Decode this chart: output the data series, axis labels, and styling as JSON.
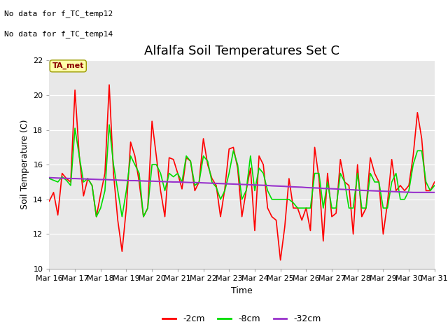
{
  "title": "Alfalfa Soil Temperatures Set C",
  "xlabel": "Time",
  "ylabel": "Soil Temperature (C)",
  "ylim": [
    10,
    22
  ],
  "yticks": [
    10,
    12,
    14,
    16,
    18,
    20,
    22
  ],
  "xtick_labels": [
    "Mar 16",
    "Mar 17",
    "Mar 18",
    "Mar 19",
    "Mar 20",
    "Mar 21",
    "Mar 22",
    "Mar 23",
    "Mar 24",
    "Mar 25",
    "Mar 26",
    "Mar 27",
    "Mar 28",
    "Mar 29",
    "Mar 30",
    "Mar 31"
  ],
  "no_data_text1": "No data for f_TC_temp12",
  "no_data_text2": "No data for f_TC_temp14",
  "ta_met_label": "TA_met",
  "legend_entries": [
    "-2cm",
    "-8cm",
    "-32cm"
  ],
  "legend_colors": [
    "#ff0000",
    "#00dd00",
    "#9933cc"
  ],
  "bg_color": "#e8e8e8",
  "title_fontsize": 13,
  "series_2cm": [
    13.9,
    14.4,
    13.1,
    15.5,
    15.2,
    15.0,
    20.3,
    16.5,
    14.2,
    15.2,
    14.8,
    13.0,
    14.3,
    15.5,
    20.6,
    15.5,
    12.8,
    11.0,
    13.5,
    17.3,
    16.5,
    15.0,
    13.0,
    13.5,
    18.5,
    16.5,
    14.5,
    13.0,
    16.4,
    16.3,
    15.5,
    14.6,
    16.4,
    16.2,
    14.5,
    15.0,
    17.5,
    16.0,
    15.2,
    14.8,
    13.0,
    14.6,
    16.9,
    17.0,
    15.8,
    13.0,
    14.5,
    15.8,
    12.2,
    16.5,
    16.0,
    13.5,
    13.0,
    12.8,
    10.5,
    12.4,
    15.2,
    13.5,
    13.5,
    12.8,
    13.5,
    12.2,
    17.0,
    15.2,
    11.6,
    15.5,
    13.0,
    13.2,
    16.3,
    15.0,
    14.8,
    12.0,
    16.0,
    13.0,
    13.5,
    16.4,
    15.5,
    15.0,
    12.0,
    13.8,
    16.3,
    14.5,
    14.8,
    14.5,
    14.8,
    16.5,
    19.0,
    17.5,
    14.5,
    14.5,
    15.0
  ],
  "series_8cm": [
    15.2,
    15.1,
    15.0,
    15.3,
    15.1,
    14.8,
    18.1,
    16.5,
    15.0,
    15.2,
    14.8,
    13.0,
    13.5,
    14.5,
    18.3,
    16.0,
    14.5,
    13.0,
    14.5,
    16.5,
    16.0,
    15.5,
    13.0,
    13.5,
    16.0,
    16.0,
    15.5,
    14.5,
    15.5,
    15.3,
    15.5,
    15.0,
    16.5,
    16.2,
    14.8,
    15.0,
    16.5,
    16.2,
    15.0,
    14.7,
    14.0,
    14.5,
    15.5,
    16.8,
    16.0,
    14.0,
    14.5,
    16.5,
    14.5,
    15.8,
    15.5,
    14.5,
    14.0,
    14.0,
    14.0,
    14.0,
    14.0,
    13.8,
    13.5,
    13.5,
    13.5,
    13.5,
    15.5,
    15.5,
    13.5,
    15.0,
    13.5,
    13.5,
    15.5,
    15.0,
    13.5,
    13.5,
    15.5,
    13.5,
    13.5,
    15.5,
    15.0,
    15.0,
    13.5,
    13.5,
    15.0,
    15.5,
    14.0,
    14.0,
    14.5,
    16.0,
    16.8,
    16.8,
    15.0,
    14.5,
    14.8
  ],
  "series_32cm": [
    15.25,
    15.24,
    15.23,
    15.22,
    15.21,
    15.2,
    15.2,
    15.19,
    15.18,
    15.17,
    15.16,
    15.15,
    15.14,
    15.14,
    15.13,
    15.12,
    15.11,
    15.1,
    15.09,
    15.08,
    15.08,
    15.07,
    15.06,
    15.05,
    15.05,
    15.04,
    15.03,
    15.02,
    15.01,
    15.0,
    15.0,
    14.99,
    14.98,
    14.97,
    14.97,
    14.96,
    14.95,
    14.94,
    14.93,
    14.92,
    14.91,
    14.9,
    14.89,
    14.88,
    14.87,
    14.86,
    14.85,
    14.84,
    14.83,
    14.82,
    14.81,
    14.8,
    14.78,
    14.77,
    14.76,
    14.75,
    14.73,
    14.72,
    14.71,
    14.7,
    14.68,
    14.67,
    14.66,
    14.65,
    14.63,
    14.62,
    14.61,
    14.6,
    14.58,
    14.57,
    14.56,
    14.55,
    14.53,
    14.52,
    14.51,
    14.5,
    14.49,
    14.48,
    14.47,
    14.46,
    14.45,
    14.44,
    14.43,
    14.42,
    14.41,
    14.4,
    14.4,
    14.4,
    14.4,
    14.4,
    14.4
  ]
}
